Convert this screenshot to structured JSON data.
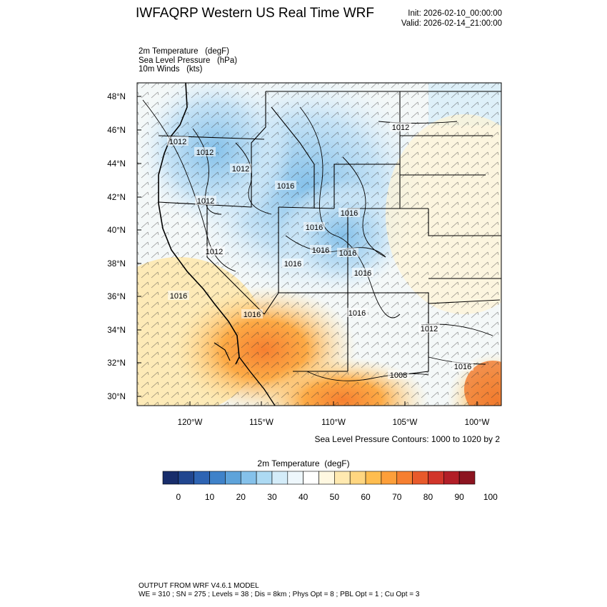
{
  "header": {
    "title": "IWFAQRP Western US Real Time WRF",
    "init": "Init: 2026-02-10_00:00:00",
    "valid": "Valid: 2026-02-14_21:00:00"
  },
  "fields": {
    "line1": "2m Temperature   (degF)",
    "line2": "Sea Level Pressure   (hPa)",
    "line3": "10m Winds   (kts)"
  },
  "axes": {
    "lat_labels": [
      "48°N",
      "46°N",
      "44°N",
      "42°N",
      "40°N",
      "38°N",
      "36°N",
      "34°N",
      "32°N",
      "30°N"
    ],
    "lon_labels": [
      "120°W",
      "115°W",
      "110°W",
      "105°W",
      "100°W"
    ]
  },
  "pressure_labels": [
    "1012",
    "1012",
    "1012",
    "1016",
    "1012",
    "1016",
    "1016",
    "1016",
    "1012",
    "1016",
    "1016",
    "1016",
    "1016",
    "1016",
    "1016",
    "1012",
    "1012",
    "1008",
    "1016"
  ],
  "contour_note": "Sea Level Pressure Contours: 1000 to 1020 by 2",
  "colorbar": {
    "title": "2m Temperature  (degF)",
    "tick_labels": [
      "0",
      "10",
      "20",
      "30",
      "40",
      "50",
      "60",
      "70",
      "80",
      "90",
      "100"
    ],
    "colors": [
      "#182d6b",
      "#21468f",
      "#2e64b3",
      "#3f82c9",
      "#5ea3da",
      "#85c1ea",
      "#addaf3",
      "#d4ecf9",
      "#eef7fc",
      "#ffffff",
      "#fff8e1",
      "#ffe9b0",
      "#ffd680",
      "#ffbd4f",
      "#fd9f3a",
      "#f67f30",
      "#e85a2b",
      "#d1352a",
      "#b21e27",
      "#8c1420"
    ]
  },
  "footer": {
    "line1": "OUTPUT FROM WRF V4.6.1 MODEL",
    "line2": "WE = 310 ; SN = 275 ; Levels = 38 ; Dis = 8km ; Phys Opt = 8 ; PBL Opt = 1 ; Cu Opt = 3"
  }
}
